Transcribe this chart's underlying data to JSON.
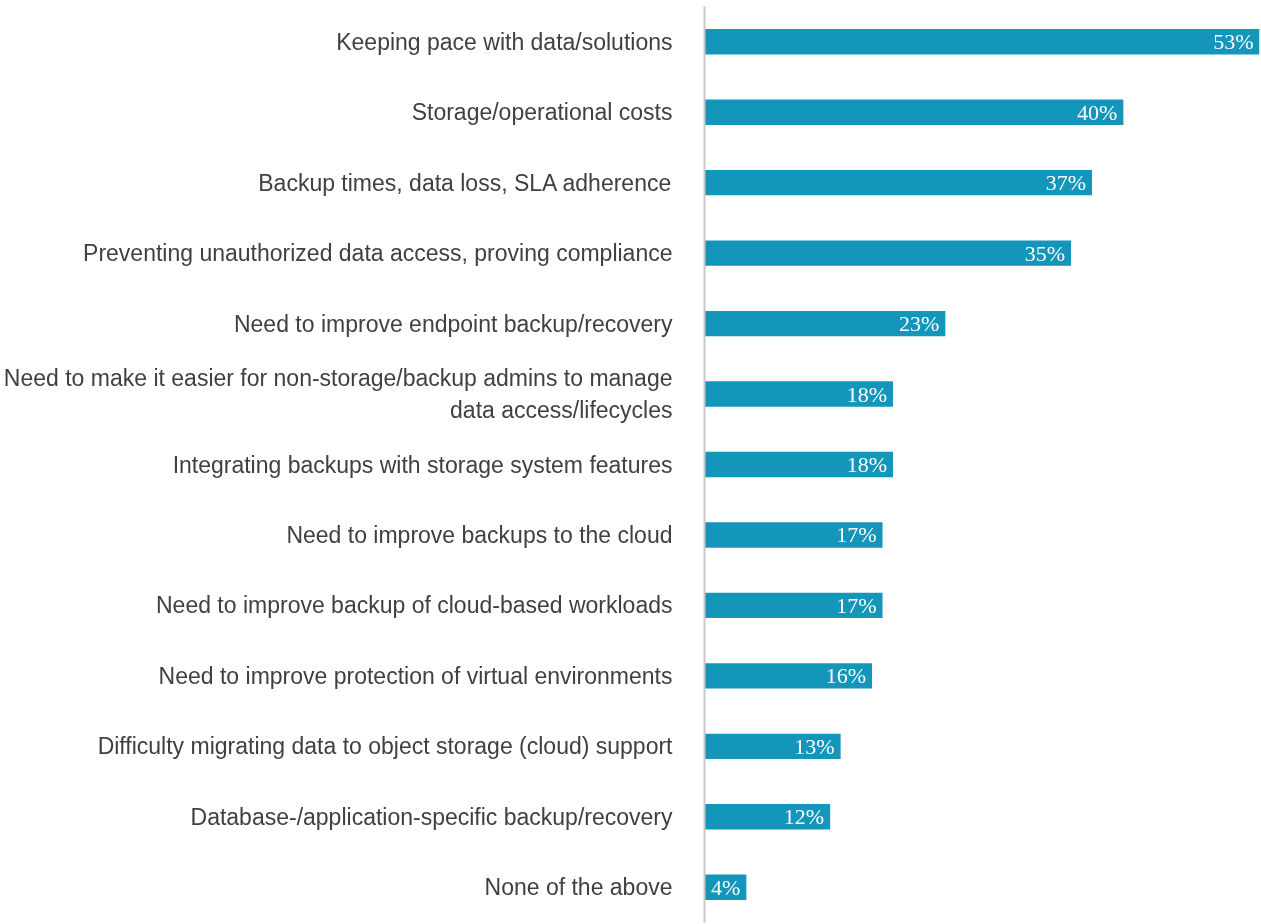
{
  "chart_data": {
    "type": "bar",
    "orientation": "horizontal",
    "categories": [
      "Keeping pace with data/solutions",
      "Storage/operational costs",
      "Backup times, data loss, SLA adherence",
      "Preventing unauthorized data access, proving compliance",
      "Need to improve endpoint backup/recovery",
      "Need to make it easier for non-storage/backup admins to manage data access/lifecycles",
      "Integrating backups with storage system features",
      "Need to improve backups to the cloud",
      "Need to improve backup of cloud-based workloads",
      "Need to improve protection of virtual environments",
      "Difficulty migrating data to object storage (cloud) support",
      "Database-/application-specific backup/recovery",
      "None of the above"
    ],
    "values": [
      53,
      40,
      37,
      35,
      23,
      18,
      18,
      17,
      17,
      16,
      13,
      12,
      4
    ],
    "value_labels": [
      "53%",
      "40%",
      "37%",
      "35%",
      "23%",
      "18%",
      "18%",
      "17%",
      "17%",
      "16%",
      "13%",
      "12%",
      "4%"
    ],
    "color": "#1496bb",
    "xlim": [
      0,
      53
    ],
    "tick_labels": "y"
  }
}
